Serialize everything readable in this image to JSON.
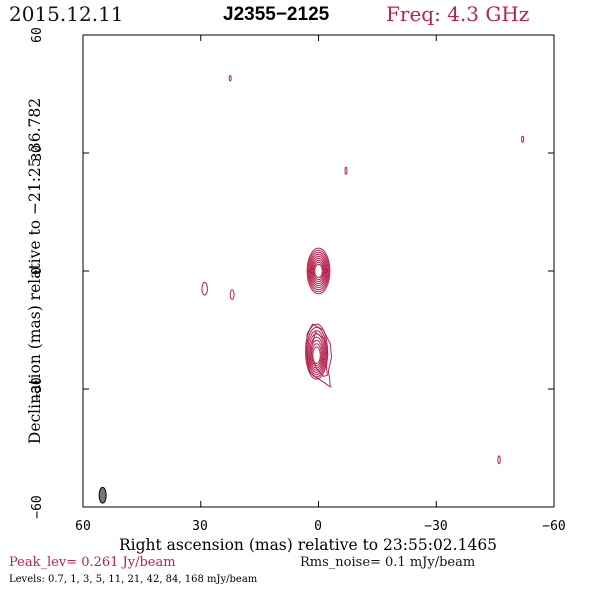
{
  "header": {
    "date": "2015.12.11",
    "source": "J2355−2125",
    "frequency": "Freq: 4.3 GHz"
  },
  "footer": {
    "peak": "Peak_lev=  0.261 Jy/beam",
    "rms": "Rms_noise=  0.1 mJy/beam",
    "levels": "Levels: 0.7,    1,    3,    5,   11,   21,   42,   84, 168 mJy/beam"
  },
  "colors": {
    "contour": "#b5244e",
    "text_accent": "#b5244e",
    "frame": "#000000",
    "beam": "#777777"
  },
  "chart_data": {
    "type": "contour",
    "title": "",
    "xlabel": "Right ascension (mas) relative to 23:55:02.1465",
    "ylabel": "Declination (mas) relative to −21:25:36.782",
    "xlim": [
      60,
      -60
    ],
    "ylim": [
      -60,
      60
    ],
    "xticks": [
      60,
      30,
      0,
      -30,
      -60
    ],
    "xtick_labels": [
      "60",
      "30",
      "0",
      "−30",
      "−60"
    ],
    "yticks": [
      -60,
      -30,
      0,
      30,
      60
    ],
    "ytick_labels": [
      "−60",
      "−30",
      "0",
      "30",
      "60"
    ],
    "grid": false,
    "peak_jy_per_beam": 0.261,
    "rms_noise_mjy_per_beam": 0.1,
    "levels_mjy_per_beam": [
      0.7,
      1,
      3,
      5,
      11,
      21,
      42,
      84,
      168
    ],
    "beam": {
      "x": 55,
      "y": -57,
      "major": 4,
      "minor": 1.8,
      "pa_deg": 0
    },
    "components": [
      {
        "name": "core",
        "x": 0,
        "y": 0,
        "levels": 9,
        "max_rx": 2.9,
        "max_ry": 5.8
      },
      {
        "name": "jet",
        "x": 0.5,
        "y": -20.5,
        "levels": 8,
        "max_rx": 2.8,
        "max_ry": 7.0
      }
    ],
    "blobs": [
      {
        "x": 22.5,
        "y": 49,
        "rx": 0.25,
        "ry": 0.7
      },
      {
        "x": -52,
        "y": 33.5,
        "rx": 0.25,
        "ry": 0.8
      },
      {
        "x": -7,
        "y": 25.5,
        "rx": 0.25,
        "ry": 0.9
      },
      {
        "x": 29,
        "y": -4.5,
        "rx": 0.7,
        "ry": 1.6
      },
      {
        "x": 22,
        "y": -6,
        "rx": 0.5,
        "ry": 1.2
      },
      {
        "x": -46,
        "y": -48,
        "rx": 0.3,
        "ry": 1.0
      }
    ]
  }
}
